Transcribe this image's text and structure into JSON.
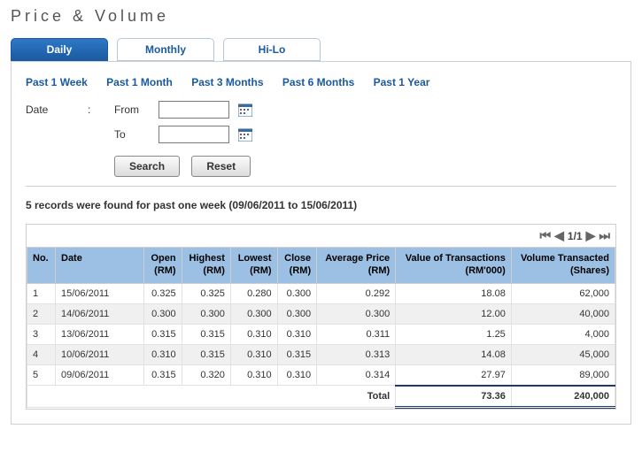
{
  "title": "Price & Volume",
  "tabs": [
    {
      "label": "Daily",
      "active": true
    },
    {
      "label": "Monthly",
      "active": false
    },
    {
      "label": "Hi-Lo",
      "active": false
    }
  ],
  "sublinks": [
    "Past 1 Week",
    "Past 1 Month",
    "Past 3 Months",
    "Past 6 Months",
    "Past 1 Year"
  ],
  "dateFilter": {
    "label": "Date",
    "fromLabel": "From",
    "toLabel": "To",
    "fromValue": "",
    "toValue": ""
  },
  "buttons": {
    "search": "Search",
    "reset": "Reset"
  },
  "statusText": "5 records were found for past one week (09/06/2011 to 15/06/2011)",
  "pager": {
    "text": "1/1"
  },
  "columns": [
    "No.",
    "Date",
    "Open (RM)",
    "Highest (RM)",
    "Lowest (RM)",
    "Close (RM)",
    "Average Price (RM)",
    "Value of Transactions (RM'000)",
    "Volume Transacted (Shares)"
  ],
  "rows": [
    {
      "no": "1",
      "date": "15/06/2011",
      "open": "0.325",
      "high": "0.325",
      "low": "0.280",
      "close": "0.300",
      "avg": "0.292",
      "value": "18.08",
      "volume": "62,000"
    },
    {
      "no": "2",
      "date": "14/06/2011",
      "open": "0.300",
      "high": "0.300",
      "low": "0.300",
      "close": "0.300",
      "avg": "0.300",
      "value": "12.00",
      "volume": "40,000"
    },
    {
      "no": "3",
      "date": "13/06/2011",
      "open": "0.315",
      "high": "0.315",
      "low": "0.310",
      "close": "0.310",
      "avg": "0.311",
      "value": "1.25",
      "volume": "4,000"
    },
    {
      "no": "4",
      "date": "10/06/2011",
      "open": "0.310",
      "high": "0.315",
      "low": "0.310",
      "close": "0.315",
      "avg": "0.313",
      "value": "14.08",
      "volume": "45,000"
    },
    {
      "no": "5",
      "date": "09/06/2011",
      "open": "0.315",
      "high": "0.320",
      "low": "0.310",
      "close": "0.310",
      "avg": "0.314",
      "value": "27.97",
      "volume": "89,000"
    }
  ],
  "total": {
    "label": "Total",
    "value": "73.36",
    "volume": "240,000"
  },
  "colors": {
    "tabActiveBg": "#1a5aa0",
    "link": "#1a5aa0",
    "headerBg": "#9cc0e4",
    "border": "#cfcfcf",
    "altRow": "#f0f0f0",
    "underlineDark": "#1a3a6e"
  }
}
